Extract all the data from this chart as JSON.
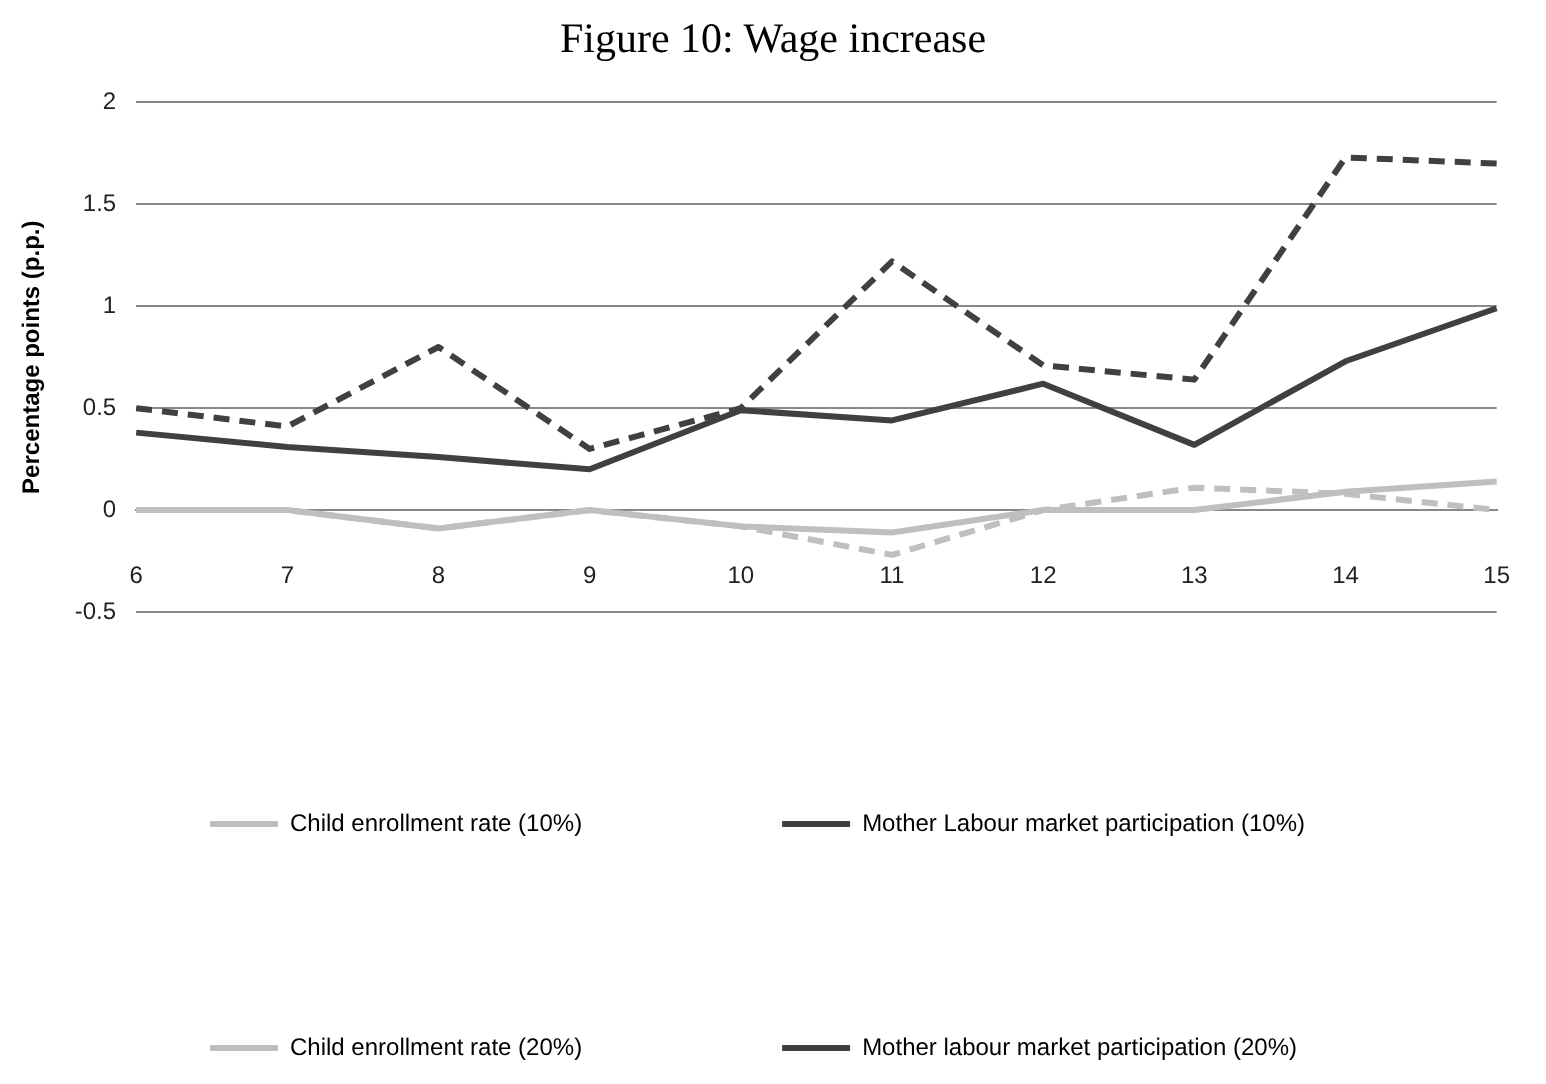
{
  "chart_data": {
    "type": "line",
    "title": "Figure 10: Wage increase",
    "ylabel": "Percentage points (p.p.)",
    "categories": [
      "6",
      "7",
      "8",
      "9",
      "10",
      "11",
      "12",
      "13",
      "14",
      "15"
    ],
    "series": [
      {
        "name": "Child enrollment rate (10%)",
        "color": "#bfbfbf",
        "line_style": "solid",
        "values": [
          0,
          0,
          -0.09,
          0,
          -0.08,
          -0.11,
          0,
          0,
          0.09,
          0.14
        ]
      },
      {
        "name": "Mother Labour market participation (10%)",
        "color": "#404040",
        "line_style": "solid",
        "values": [
          0.38,
          0.31,
          0.26,
          0.2,
          0.49,
          0.44,
          0.62,
          0.32,
          0.73,
          0.99
        ]
      },
      {
        "name": "Child enrollment rate (20%)",
        "color": "#bfbfbf",
        "line_style": "dashed",
        "values": [
          0,
          0,
          -0.09,
          0,
          -0.08,
          -0.22,
          0,
          0.11,
          0.08,
          0
        ]
      },
      {
        "name": "Mother labour market participation (20%)",
        "color": "#404040",
        "line_style": "dashed",
        "values": [
          0.5,
          0.41,
          0.8,
          0.3,
          0.5,
          1.22,
          0.71,
          0.64,
          1.73,
          1.7
        ]
      }
    ],
    "ylim": [
      -0.5,
      2
    ],
    "yticks": [
      -0.5,
      0,
      0.5,
      1,
      1.5,
      2
    ],
    "grid": "y",
    "legend": "bottom",
    "marker": "none"
  }
}
